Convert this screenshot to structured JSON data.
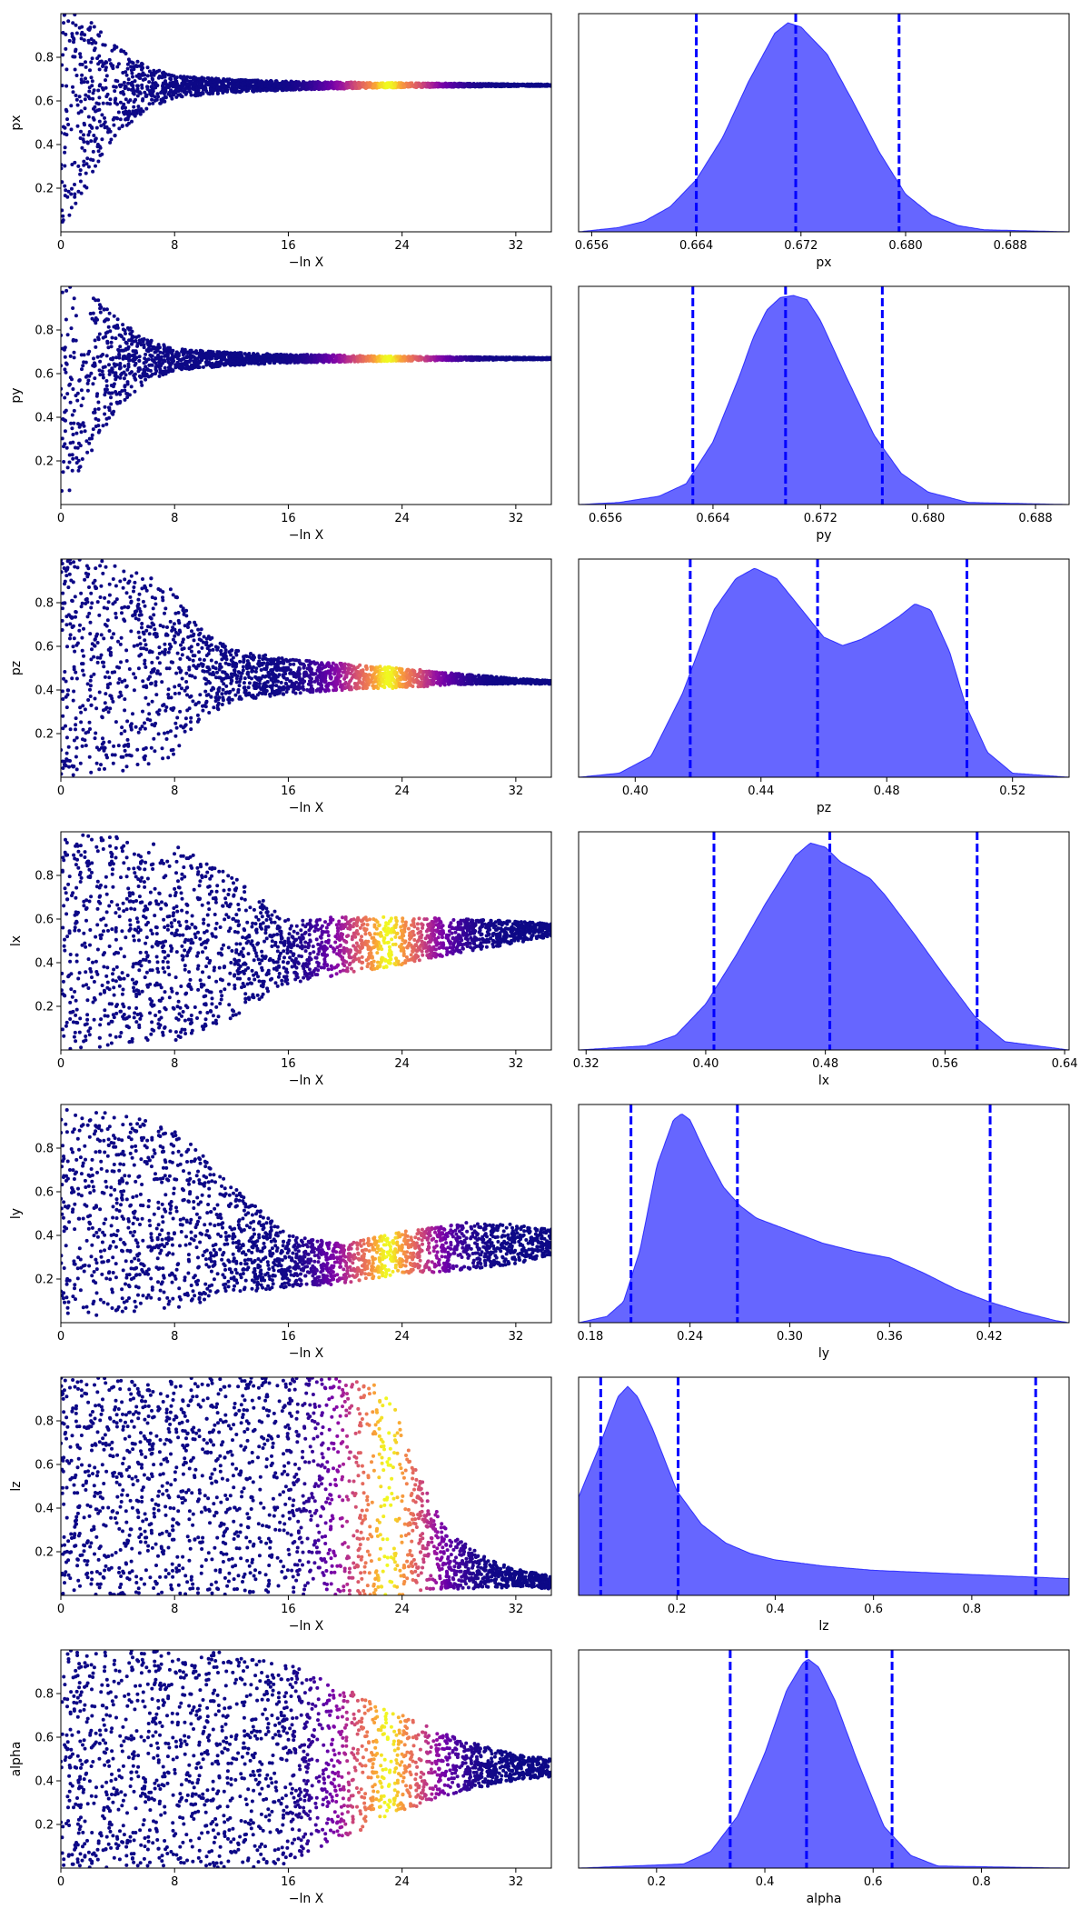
{
  "colors": {
    "kde_fill": "#0000ff",
    "kde_fill_opacity": 0.6,
    "quantile_line": "#0000ff",
    "scatter_low": "#0d0887",
    "scatter_mid": "#cc4778",
    "scatter_high": "#f0f921"
  },
  "chart_data": [
    {
      "type": "scatter",
      "param": "px",
      "xlabel": "−ln X",
      "ylabel": "px",
      "xlim": [
        0,
        34.5
      ],
      "ylim": [
        0,
        1
      ],
      "xticks": [
        "0",
        "8",
        "16",
        "24",
        "32"
      ],
      "yticks": [
        "0.2",
        "0.4",
        "0.6",
        "0.8"
      ],
      "colormap": "plasma",
      "envelope": {
        "x": [
          0,
          1,
          2,
          3,
          4,
          6,
          8,
          12,
          16,
          20,
          24,
          28,
          32,
          34.5
        ],
        "center": [
          0.5,
          0.55,
          0.6,
          0.63,
          0.65,
          0.66,
          0.665,
          0.668,
          0.67,
          0.671,
          0.672,
          0.672,
          0.672,
          0.672
        ],
        "half_width": [
          0.5,
          0.45,
          0.38,
          0.3,
          0.2,
          0.1,
          0.05,
          0.03,
          0.02,
          0.015,
          0.01,
          0.008,
          0.005,
          0.004
        ]
      },
      "weight_peak_x": 23,
      "weight_width": 3.5
    },
    {
      "type": "area",
      "param": "px",
      "xlabel": "px",
      "xlim": [
        0.655,
        0.6925
      ],
      "xticks": [
        0.656,
        0.664,
        0.672,
        0.68,
        0.688
      ],
      "tick_labels": [
        "0.656",
        "0.664",
        "0.672",
        "0.680",
        "0.688"
      ],
      "kde": {
        "x": [
          0.655,
          0.658,
          0.66,
          0.662,
          0.664,
          0.666,
          0.668,
          0.67,
          0.671,
          0.672,
          0.674,
          0.676,
          0.678,
          0.68,
          0.682,
          0.684,
          0.686,
          0.6925
        ],
        "density": [
          0.0,
          0.02,
          0.05,
          0.12,
          0.25,
          0.45,
          0.72,
          0.95,
          1.0,
          0.98,
          0.85,
          0.62,
          0.38,
          0.18,
          0.08,
          0.03,
          0.01,
          0.0
        ]
      },
      "quantiles": [
        0.664,
        0.6716,
        0.6795
      ]
    },
    {
      "type": "scatter",
      "param": "py",
      "xlabel": "−ln X",
      "ylabel": "py",
      "xlim": [
        0,
        34.5
      ],
      "ylim": [
        0,
        1
      ],
      "xticks": [
        "0",
        "8",
        "16",
        "24",
        "32"
      ],
      "yticks": [
        "0.2",
        "0.4",
        "0.6",
        "0.8"
      ],
      "colormap": "plasma",
      "envelope": {
        "x": [
          0,
          1,
          2,
          3,
          4,
          6,
          8,
          12,
          16,
          20,
          24,
          28,
          32,
          34.5
        ],
        "center": [
          0.5,
          0.55,
          0.6,
          0.63,
          0.65,
          0.66,
          0.665,
          0.667,
          0.669,
          0.669,
          0.669,
          0.669,
          0.669,
          0.669
        ],
        "half_width": [
          0.5,
          0.45,
          0.38,
          0.3,
          0.2,
          0.1,
          0.05,
          0.03,
          0.02,
          0.015,
          0.01,
          0.008,
          0.005,
          0.004
        ]
      },
      "weight_peak_x": 23,
      "weight_width": 3.5
    },
    {
      "type": "area",
      "param": "py",
      "xlabel": "py",
      "xlim": [
        0.654,
        0.6905
      ],
      "xticks": [
        0.656,
        0.664,
        0.672,
        0.68,
        0.688
      ],
      "tick_labels": [
        "0.656",
        "0.664",
        "0.672",
        "0.680",
        "0.688"
      ],
      "kde": {
        "x": [
          0.654,
          0.657,
          0.66,
          0.662,
          0.664,
          0.666,
          0.667,
          0.668,
          0.669,
          0.67,
          0.671,
          0.672,
          0.674,
          0.676,
          0.678,
          0.68,
          0.683,
          0.6905
        ],
        "density": [
          0.0,
          0.01,
          0.04,
          0.1,
          0.3,
          0.62,
          0.8,
          0.93,
          0.99,
          1.0,
          0.98,
          0.88,
          0.6,
          0.33,
          0.15,
          0.06,
          0.01,
          0.0
        ]
      },
      "quantiles": [
        0.6625,
        0.6694,
        0.6766
      ]
    },
    {
      "type": "scatter",
      "param": "pz",
      "xlabel": "−ln X",
      "ylabel": "pz",
      "xlim": [
        0,
        34.5
      ],
      "ylim": [
        0,
        1
      ],
      "xticks": [
        "0",
        "8",
        "16",
        "24",
        "32"
      ],
      "yticks": [
        "0.2",
        "0.4",
        "0.6",
        "0.8"
      ],
      "colormap": "plasma",
      "envelope": {
        "x": [
          0,
          2,
          4,
          6,
          8,
          10,
          12,
          16,
          20,
          24,
          28,
          32,
          34.5
        ],
        "center": [
          0.5,
          0.5,
          0.5,
          0.49,
          0.48,
          0.47,
          0.465,
          0.462,
          0.46,
          0.455,
          0.45,
          0.44,
          0.435
        ],
        "half_width": [
          0.5,
          0.5,
          0.48,
          0.44,
          0.38,
          0.2,
          0.12,
          0.08,
          0.06,
          0.045,
          0.025,
          0.012,
          0.008
        ]
      },
      "weight_peak_x": 23,
      "weight_width": 3.5
    },
    {
      "type": "area",
      "param": "pz",
      "xlabel": "pz",
      "xlim": [
        0.382,
        0.538
      ],
      "xticks": [
        0.4,
        0.44,
        0.48,
        0.52
      ],
      "tick_labels": [
        "0.40",
        "0.44",
        "0.48",
        "0.52"
      ],
      "kde": {
        "x": [
          0.382,
          0.395,
          0.405,
          0.415,
          0.425,
          0.432,
          0.438,
          0.445,
          0.452,
          0.46,
          0.466,
          0.472,
          0.478,
          0.484,
          0.489,
          0.494,
          0.5,
          0.505,
          0.512,
          0.52,
          0.538
        ],
        "density": [
          0.0,
          0.02,
          0.1,
          0.4,
          0.8,
          0.95,
          1.0,
          0.95,
          0.82,
          0.67,
          0.63,
          0.66,
          0.71,
          0.77,
          0.83,
          0.8,
          0.6,
          0.35,
          0.12,
          0.02,
          0.0
        ]
      },
      "quantiles": [
        0.4175,
        0.458,
        0.5055
      ]
    },
    {
      "type": "scatter",
      "param": "lx",
      "xlabel": "−ln X",
      "ylabel": "lx",
      "xlim": [
        0,
        34.5
      ],
      "ylim": [
        0,
        1
      ],
      "xticks": [
        "0",
        "8",
        "16",
        "24",
        "32"
      ],
      "yticks": [
        "0.2",
        "0.4",
        "0.6",
        "0.8"
      ],
      "colormap": "plasma",
      "envelope": {
        "x": [
          0,
          4,
          8,
          12,
          16,
          20,
          24,
          28,
          32,
          34.5
        ],
        "center": [
          0.5,
          0.5,
          0.49,
          0.47,
          0.45,
          0.48,
          0.5,
          0.52,
          0.54,
          0.55
        ],
        "half_width": [
          0.5,
          0.48,
          0.45,
          0.33,
          0.15,
          0.13,
          0.11,
          0.08,
          0.05,
          0.03
        ]
      },
      "weight_peak_x": 23,
      "weight_width": 3.5
    },
    {
      "type": "area",
      "param": "lx",
      "xlabel": "lx",
      "xlim": [
        0.315,
        0.643
      ],
      "xticks": [
        0.32,
        0.4,
        0.48,
        0.56,
        0.64
      ],
      "tick_labels": [
        "0.32",
        "0.40",
        "0.48",
        "0.56",
        "0.64"
      ],
      "kde": {
        "x": [
          0.315,
          0.36,
          0.38,
          0.4,
          0.42,
          0.44,
          0.46,
          0.47,
          0.48,
          0.49,
          0.5,
          0.51,
          0.52,
          0.54,
          0.56,
          0.58,
          0.6,
          0.643
        ],
        "density": [
          0.0,
          0.02,
          0.07,
          0.22,
          0.45,
          0.7,
          0.93,
          0.99,
          0.97,
          0.9,
          0.86,
          0.82,
          0.74,
          0.55,
          0.35,
          0.16,
          0.04,
          0.0
        ]
      },
      "quantiles": [
        0.4055,
        0.483,
        0.5815
      ]
    },
    {
      "type": "scatter",
      "param": "ly",
      "xlabel": "−ln X",
      "ylabel": "ly",
      "xlim": [
        0,
        34.5
      ],
      "ylim": [
        0,
        1
      ],
      "xticks": [
        "0",
        "8",
        "16",
        "24",
        "32"
      ],
      "yticks": [
        "0.2",
        "0.4",
        "0.6",
        "0.8"
      ],
      "colormap": "plasma",
      "envelope": {
        "x": [
          0,
          4,
          8,
          12,
          16,
          20,
          24,
          28,
          32,
          34.5
        ],
        "center": [
          0.5,
          0.5,
          0.48,
          0.38,
          0.28,
          0.27,
          0.32,
          0.35,
          0.36,
          0.37
        ],
        "half_width": [
          0.48,
          0.46,
          0.42,
          0.25,
          0.12,
          0.09,
          0.1,
          0.11,
          0.09,
          0.06
        ]
      },
      "weight_peak_x": 23,
      "weight_width": 3.5
    },
    {
      "type": "area",
      "param": "ly",
      "xlabel": "ly",
      "xlim": [
        0.173,
        0.468
      ],
      "xticks": [
        0.18,
        0.24,
        0.3,
        0.36,
        0.42
      ],
      "tick_labels": [
        "0.18",
        "0.24",
        "0.30",
        "0.36",
        "0.42"
      ],
      "kde": {
        "x": [
          0.173,
          0.19,
          0.2,
          0.21,
          0.22,
          0.23,
          0.235,
          0.24,
          0.25,
          0.26,
          0.27,
          0.28,
          0.3,
          0.32,
          0.34,
          0.36,
          0.38,
          0.4,
          0.42,
          0.44,
          0.46,
          0.468
        ],
        "density": [
          0.0,
          0.03,
          0.1,
          0.35,
          0.75,
          0.97,
          1.0,
          0.97,
          0.8,
          0.65,
          0.56,
          0.5,
          0.44,
          0.38,
          0.34,
          0.31,
          0.24,
          0.16,
          0.1,
          0.05,
          0.01,
          0.0
        ]
      },
      "quantiles": [
        0.2045,
        0.2685,
        0.4205
      ]
    },
    {
      "type": "scatter",
      "param": "lz",
      "xlabel": "−ln X",
      "ylabel": "lz",
      "xlim": [
        0,
        34.5
      ],
      "ylim": [
        0,
        1
      ],
      "xticks": [
        "0",
        "8",
        "16",
        "24",
        "32"
      ],
      "yticks": [
        "0.2",
        "0.4",
        "0.6",
        "0.8"
      ],
      "colormap": "plasma",
      "envelope": {
        "x": [
          0,
          4,
          8,
          12,
          16,
          20,
          23,
          25,
          27,
          30,
          32,
          34.5
        ],
        "center": [
          0.5,
          0.5,
          0.5,
          0.5,
          0.5,
          0.5,
          0.45,
          0.3,
          0.17,
          0.1,
          0.08,
          0.06
        ],
        "half_width": [
          0.5,
          0.5,
          0.5,
          0.5,
          0.5,
          0.5,
          0.5,
          0.28,
          0.14,
          0.07,
          0.04,
          0.03
        ]
      },
      "weight_peak_x": 23,
      "weight_width": 3.5
    },
    {
      "type": "area",
      "param": "lz",
      "xlabel": "lz",
      "xlim": [
        0.0,
        0.998
      ],
      "xticks": [
        0.2,
        0.4,
        0.6,
        0.8
      ],
      "tick_labels": [
        "0.2",
        "0.4",
        "0.6",
        "0.8"
      ],
      "kde": {
        "x": [
          0.0,
          0.04,
          0.08,
          0.1,
          0.12,
          0.15,
          0.2,
          0.25,
          0.3,
          0.35,
          0.4,
          0.45,
          0.5,
          0.55,
          0.6,
          0.65,
          0.7,
          0.75,
          0.8,
          0.85,
          0.9,
          0.95,
          0.998
        ],
        "density": [
          0.47,
          0.7,
          0.95,
          1.0,
          0.95,
          0.8,
          0.5,
          0.34,
          0.25,
          0.2,
          0.17,
          0.155,
          0.14,
          0.13,
          0.12,
          0.115,
          0.11,
          0.105,
          0.1,
          0.095,
          0.09,
          0.085,
          0.08
        ]
      },
      "quantiles": [
        0.045,
        0.2025,
        0.93
      ]
    },
    {
      "type": "scatter",
      "param": "alpha",
      "xlabel": "−ln X",
      "ylabel": "alpha",
      "xlim": [
        0,
        34.5
      ],
      "ylim": [
        0,
        1
      ],
      "xticks": [
        "0",
        "8",
        "16",
        "24",
        "32"
      ],
      "yticks": [
        "0.2",
        "0.4",
        "0.6",
        "0.8"
      ],
      "colormap": "plasma",
      "envelope": {
        "x": [
          0,
          4,
          8,
          12,
          16,
          20,
          24,
          28,
          32,
          34.5
        ],
        "center": [
          0.5,
          0.5,
          0.5,
          0.49,
          0.48,
          0.48,
          0.48,
          0.47,
          0.46,
          0.46
        ],
        "half_width": [
          0.5,
          0.5,
          0.5,
          0.5,
          0.46,
          0.34,
          0.22,
          0.12,
          0.06,
          0.04
        ]
      },
      "weight_peak_x": 23,
      "weight_width": 3.5
    },
    {
      "type": "area",
      "param": "alpha",
      "xlabel": "alpha",
      "xlim": [
        0.056,
        0.962
      ],
      "xticks": [
        0.2,
        0.4,
        0.6,
        0.8
      ],
      "tick_labels": [
        "0.2",
        "0.4",
        "0.6",
        "0.8"
      ],
      "kde": {
        "x": [
          0.056,
          0.25,
          0.3,
          0.35,
          0.4,
          0.44,
          0.47,
          0.48,
          0.5,
          0.53,
          0.57,
          0.62,
          0.67,
          0.72,
          0.962
        ],
        "density": [
          0.0,
          0.02,
          0.08,
          0.25,
          0.55,
          0.85,
          0.98,
          1.0,
          0.96,
          0.8,
          0.52,
          0.2,
          0.06,
          0.01,
          0.0
        ]
      },
      "quantiles": [
        0.336,
        0.477,
        0.635
      ]
    }
  ]
}
